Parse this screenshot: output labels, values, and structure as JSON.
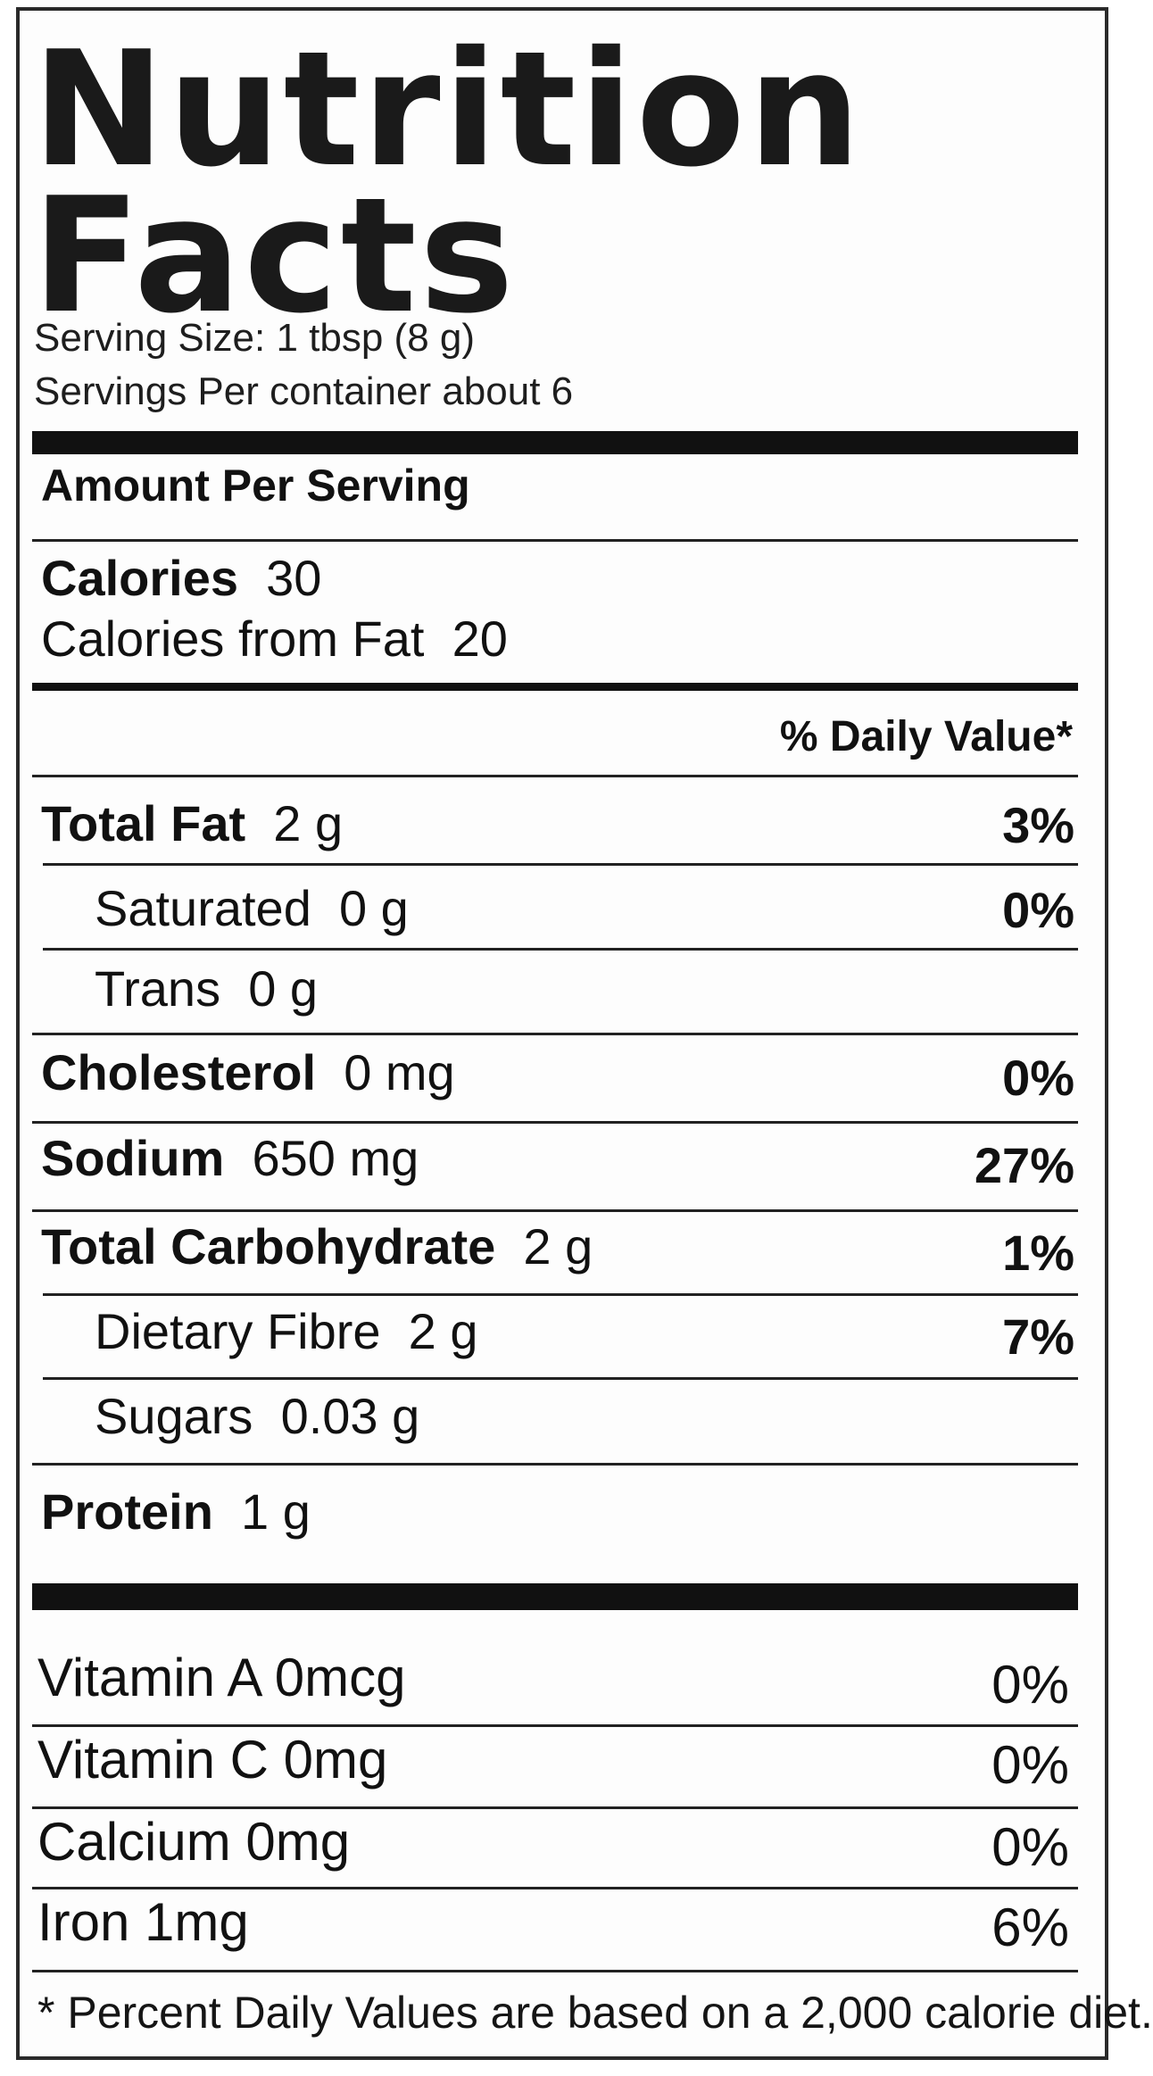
{
  "label": {
    "title_line1": "Nutrition",
    "title_line2": "Facts",
    "serving_size": "Serving Size: 1 tbsp (8 g)",
    "servings_per_container": "Servings Per container about 6",
    "amount_per_serving": "Amount Per Serving",
    "calories_label": "Calories",
    "calories_value": "30",
    "calories_from_fat_label": "Calories from Fat",
    "calories_from_fat_value": "20",
    "daily_value_header": "% Daily Value*"
  },
  "nutrients": [
    {
      "name": "Total Fat",
      "amount": "2 g",
      "dv": "3%"
    },
    {
      "name": "Saturated",
      "amount": "0 g",
      "dv": "0%"
    },
    {
      "name": "Trans",
      "amount": "0 g",
      "dv": ""
    },
    {
      "name": "Cholesterol",
      "amount": "0 mg",
      "dv": "0%"
    },
    {
      "name": "Sodium",
      "amount": "650 mg",
      "dv": "27%"
    },
    {
      "name": "Total Carbohydrate",
      "amount": "2 g",
      "dv": "1%"
    },
    {
      "name": "Dietary Fibre",
      "amount": "2 g",
      "dv": "7%"
    },
    {
      "name": "Sugars",
      "amount": "0.03 g",
      "dv": ""
    },
    {
      "name": "Protein",
      "amount": "1 g",
      "dv": ""
    }
  ],
  "vitamins": [
    {
      "name": "Vitamin A 0mcg",
      "dv": "0%"
    },
    {
      "name": "Vitamin  C 0mg",
      "dv": "0%"
    },
    {
      "name": "Calcium 0mg",
      "dv": "0%"
    },
    {
      "name": "Iron 1mg",
      "dv": "6%"
    }
  ],
  "footnote": "* Percent Daily Values are based on a 2,000 calorie diet."
}
